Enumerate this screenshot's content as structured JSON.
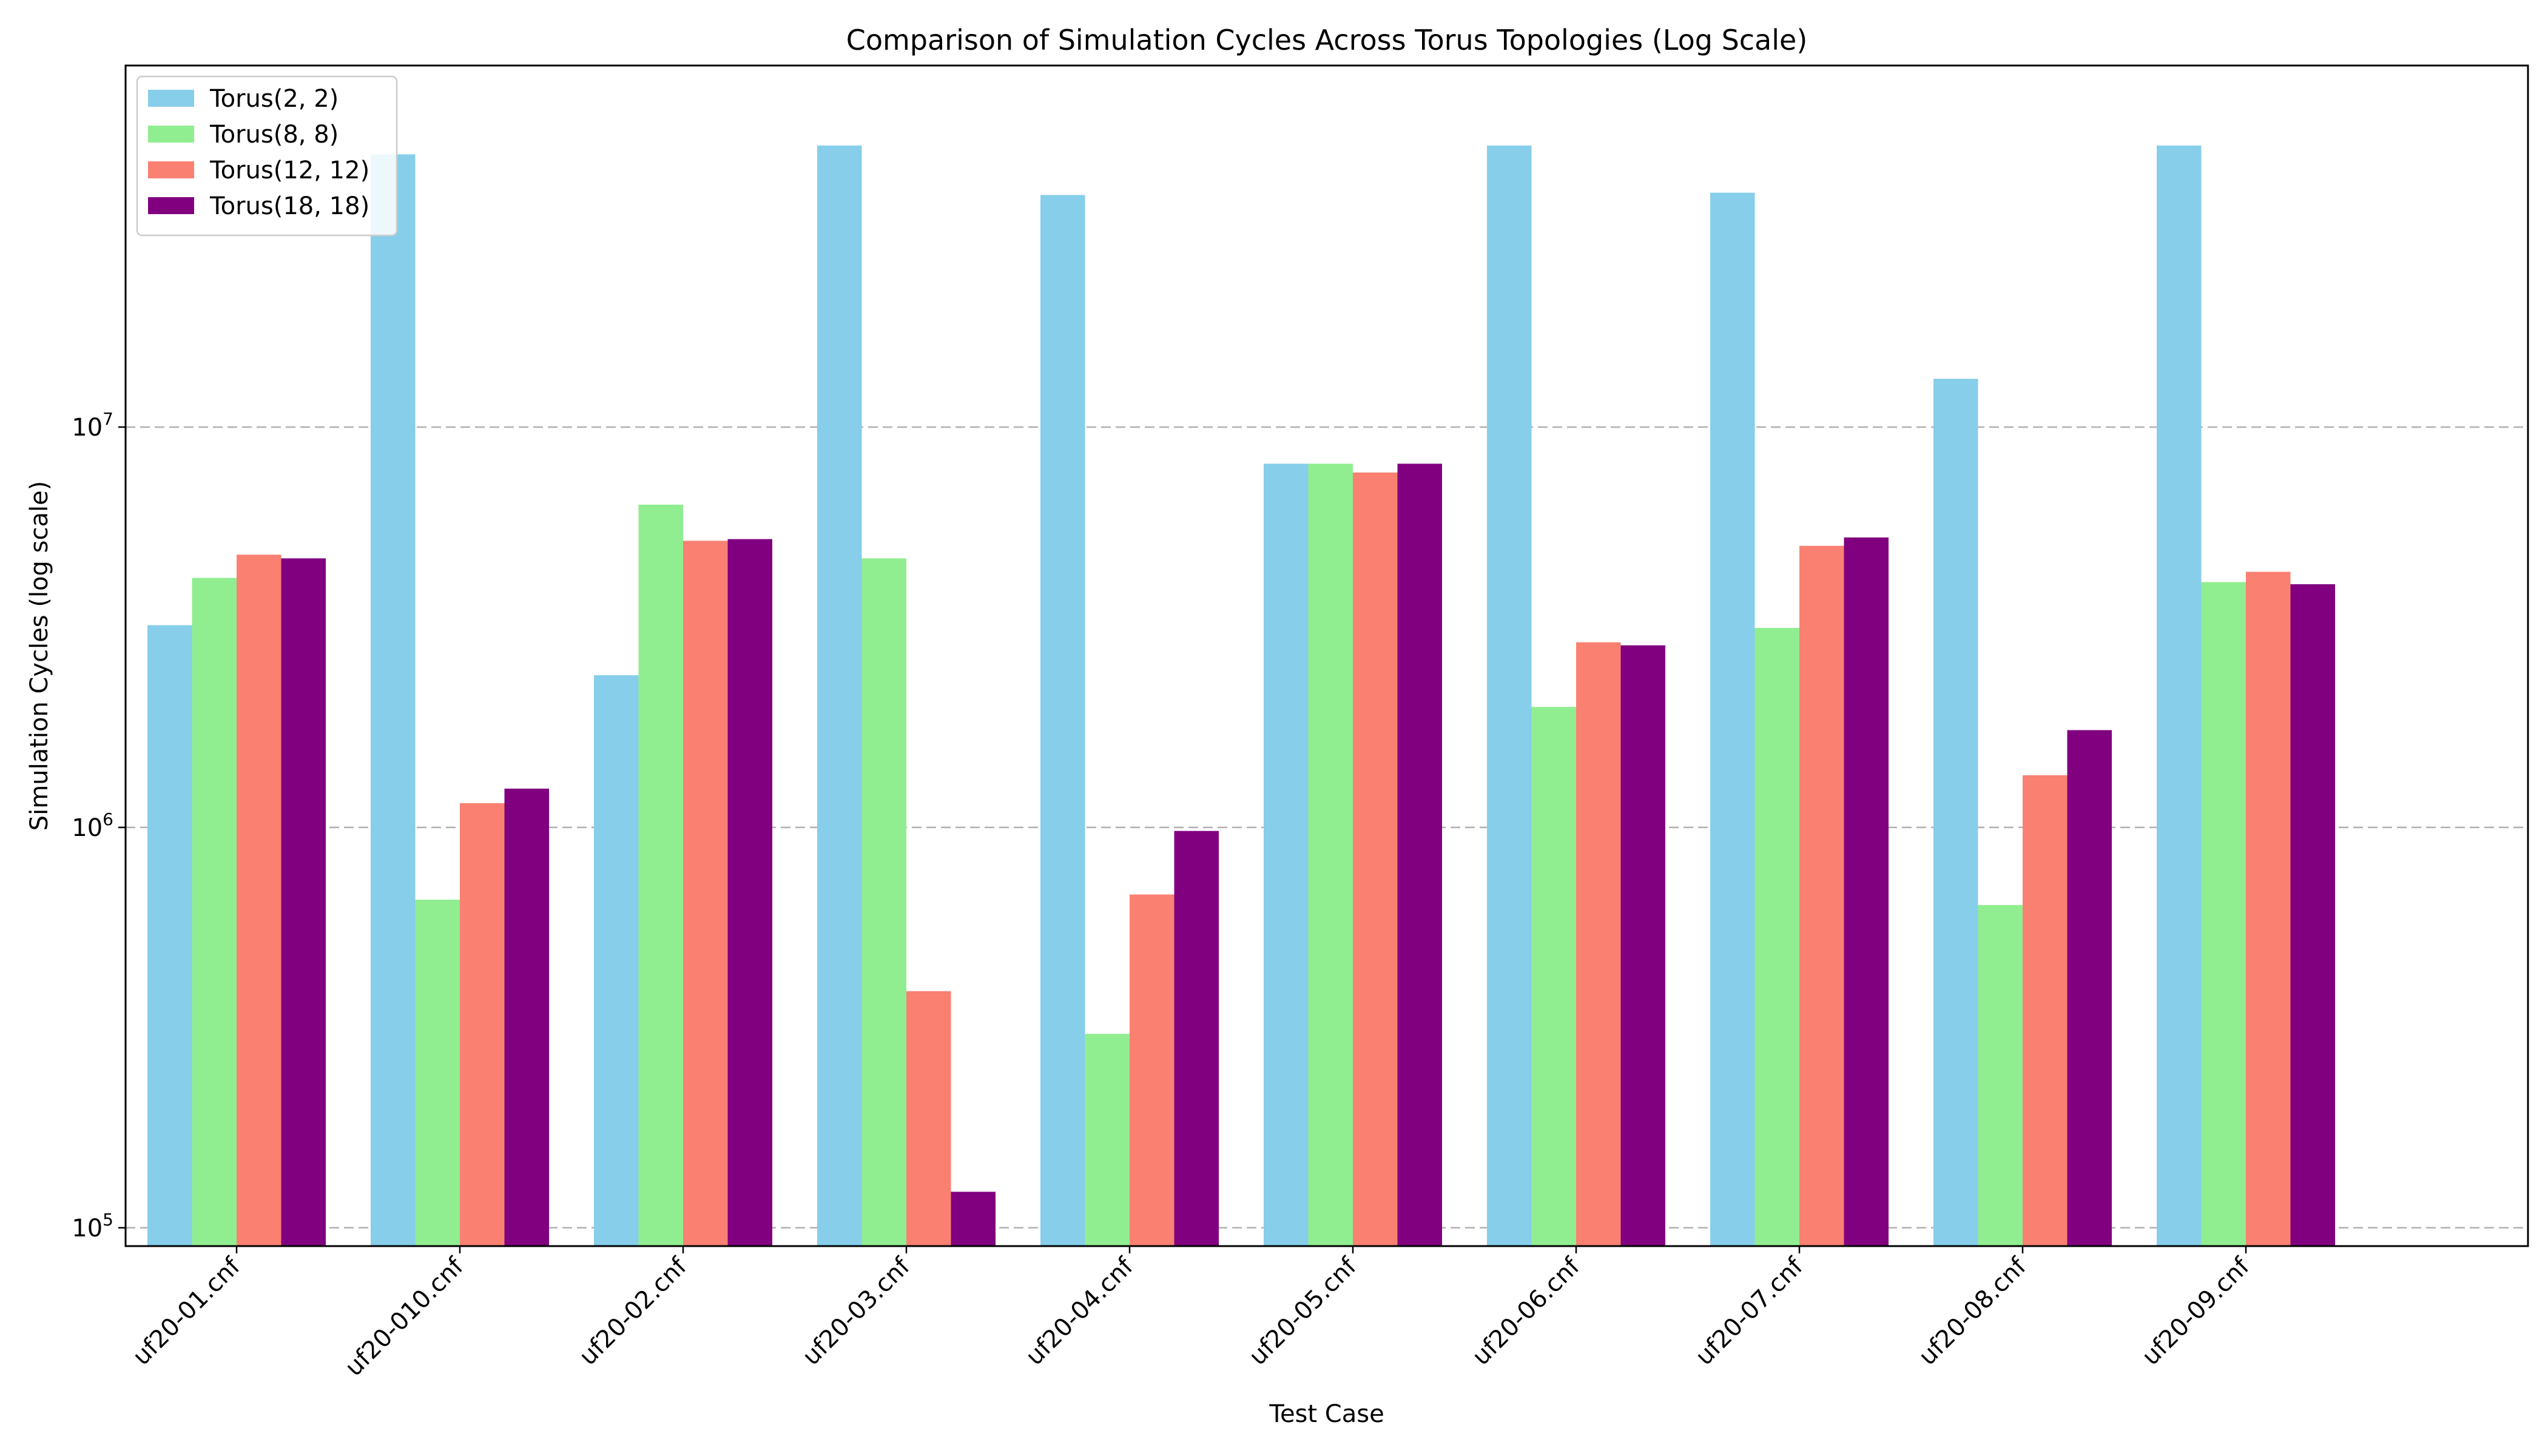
{
  "chart_data": {
    "type": "bar",
    "title": "Comparison of Simulation Cycles Across Torus Topologies (Log Scale)",
    "xlabel": "Test Case",
    "ylabel": "Simulation Cycles (log scale)",
    "yscale": "log",
    "ylim": [
      90000,
      80000000
    ],
    "yticks": [
      {
        "value": 100000,
        "base": "10",
        "exp": "5"
      },
      {
        "value": 1000000,
        "base": "10",
        "exp": "6"
      },
      {
        "value": 10000000,
        "base": "10",
        "exp": "7"
      }
    ],
    "grid": "y-dashed",
    "legend_position": "top-left",
    "categories": [
      "uf20-01.cnf",
      "uf20-010.cnf",
      "uf20-02.cnf",
      "uf20-03.cnf",
      "uf20-04.cnf",
      "uf20-05.cnf",
      "uf20-06.cnf",
      "uf20-07.cnf",
      "uf20-08.cnf",
      "uf20-09.cnf"
    ],
    "series": [
      {
        "name": "Torus(2, 2)",
        "color": "#87CEEB",
        "values": [
          3200000,
          48000000,
          2400000,
          50500000,
          38000000,
          8100000,
          50500000,
          38500000,
          13200000,
          50500000
        ]
      },
      {
        "name": "Torus(8, 8)",
        "color": "#90EE90",
        "values": [
          4200000,
          660000,
          6400000,
          4700000,
          305000,
          8100000,
          2000000,
          3150000,
          640000,
          4100000
        ]
      },
      {
        "name": "Torus(12, 12)",
        "color": "#FA8072",
        "values": [
          4800000,
          1150000,
          5200000,
          390000,
          680000,
          7700000,
          2900000,
          5050000,
          1350000,
          4350000
        ]
      },
      {
        "name": "Torus(18, 18)",
        "color": "#800080",
        "values": [
          4700000,
          1250000,
          5250000,
          123000,
          980000,
          8100000,
          2850000,
          5300000,
          1750000,
          4050000
        ]
      }
    ]
  }
}
